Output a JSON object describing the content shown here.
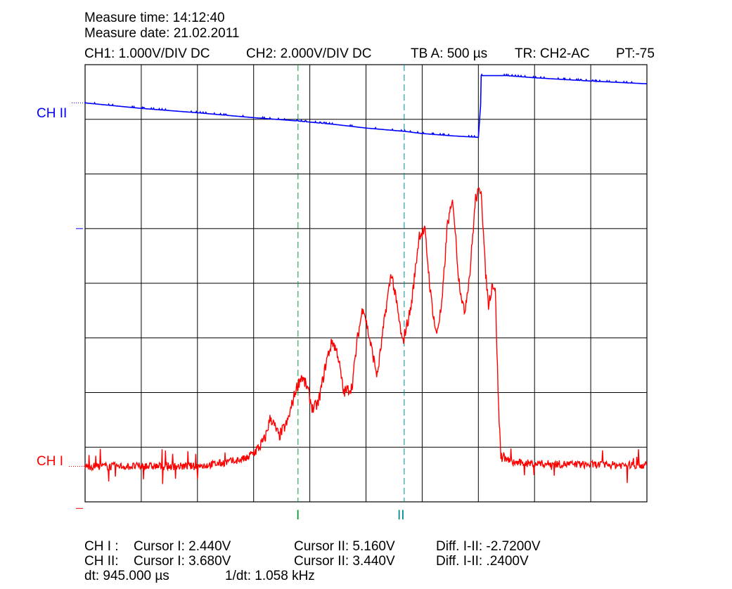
{
  "header": {
    "measure_time": "Measure time: 14:12:40",
    "measure_date": "Measure date: 21.02.2011",
    "ch1_setting": "CH1: 1.000V/DIV DC",
    "ch2_setting": "CH2: 2.000V/DIV DC",
    "timebase": "TB A: 500 µs",
    "trigger": "TR: CH2-AC",
    "pretrigger": "PT:-75"
  },
  "markers": {
    "ch2_label": "CH II",
    "ch1_label": "CH I",
    "cursor1_label": "I",
    "cursor2_label": "II"
  },
  "readout": {
    "ch1_prefix": "CH I :",
    "ch1_cursor1": "Cursor I: 2.440V",
    "ch1_cursor2": "Cursor II: 5.160V",
    "ch1_diff": "Diff. I-II: -2.7200V",
    "ch2_prefix": "CH II:",
    "ch2_cursor1": "Cursor I: 3.680V",
    "ch2_cursor2": "Cursor II: 3.440V",
    "ch2_diff": "Diff. I-II: .2400V",
    "dt": "dt: 945.000 µs",
    "inv_dt": "1/dt: 1.058 kHz"
  },
  "colors": {
    "ch1": "#ff0000",
    "ch2": "#0000ff",
    "cursor1": "#009933",
    "cursor2": "#008c8c",
    "grid": "#000000"
  },
  "chart_data": {
    "type": "line",
    "x_unit": "div",
    "y_unit": "div",
    "xlim": [
      0,
      10
    ],
    "ylim": [
      0,
      8
    ],
    "grid": true,
    "cursors": [
      {
        "name": "I",
        "x": 3.79
      },
      {
        "name": "II",
        "x": 5.68
      }
    ],
    "series": [
      {
        "name": "CH II",
        "color": "#0000ff",
        "points": [
          [
            0,
            7.3
          ],
          [
            1.0,
            7.2
          ],
          [
            2.0,
            7.12
          ],
          [
            3.0,
            7.03
          ],
          [
            3.79,
            6.97
          ],
          [
            4.5,
            6.9
          ],
          [
            5.0,
            6.84
          ],
          [
            5.68,
            6.78
          ],
          [
            6.0,
            6.74
          ],
          [
            6.5,
            6.7
          ],
          [
            7.0,
            6.67
          ],
          [
            7.04,
            7.25
          ],
          [
            7.05,
            7.8
          ],
          [
            7.5,
            7.8
          ],
          [
            8.0,
            7.76
          ],
          [
            8.5,
            7.73
          ],
          [
            9.0,
            7.7
          ],
          [
            10.0,
            7.65
          ]
        ]
      },
      {
        "name": "CH I",
        "color": "#ff0000",
        "points": [
          [
            0,
            0.65
          ],
          [
            2.0,
            0.65
          ],
          [
            2.5,
            0.72
          ],
          [
            2.9,
            0.8
          ],
          [
            3.1,
            1.0
          ],
          [
            3.2,
            1.15
          ],
          [
            3.3,
            1.55
          ],
          [
            3.45,
            1.2
          ],
          [
            3.6,
            1.45
          ],
          [
            3.75,
            2.05
          ],
          [
            3.85,
            2.3
          ],
          [
            3.95,
            2.1
          ],
          [
            4.05,
            1.7
          ],
          [
            4.15,
            1.8
          ],
          [
            4.3,
            2.6
          ],
          [
            4.4,
            2.95
          ],
          [
            4.5,
            2.7
          ],
          [
            4.6,
            2.0
          ],
          [
            4.75,
            2.1
          ],
          [
            4.85,
            3.0
          ],
          [
            4.95,
            3.6
          ],
          [
            5.05,
            3.05
          ],
          [
            5.2,
            2.3
          ],
          [
            5.35,
            3.5
          ],
          [
            5.45,
            4.2
          ],
          [
            5.55,
            3.6
          ],
          [
            5.65,
            2.9
          ],
          [
            5.8,
            3.55
          ],
          [
            5.95,
            4.9
          ],
          [
            6.05,
            4.95
          ],
          [
            6.15,
            3.8
          ],
          [
            6.25,
            3.05
          ],
          [
            6.35,
            3.6
          ],
          [
            6.45,
            5.1
          ],
          [
            6.55,
            5.5
          ],
          [
            6.65,
            4.1
          ],
          [
            6.75,
            3.45
          ],
          [
            6.85,
            4.2
          ],
          [
            6.95,
            5.55
          ],
          [
            7.05,
            5.75
          ],
          [
            7.12,
            4.3
          ],
          [
            7.18,
            3.6
          ],
          [
            7.25,
            4.0
          ],
          [
            7.3,
            3.9
          ],
          [
            7.36,
            1.7
          ],
          [
            7.4,
            0.85
          ],
          [
            7.6,
            0.72
          ],
          [
            8.0,
            0.7
          ],
          [
            9.0,
            0.68
          ],
          [
            10.0,
            0.67
          ]
        ]
      }
    ]
  }
}
